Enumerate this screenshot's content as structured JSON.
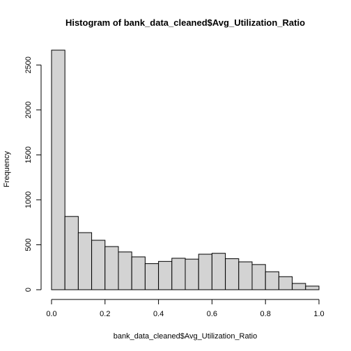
{
  "chart_data": {
    "type": "bar",
    "title": "Histogram of bank_data_cleaned$Avg_Utilization_Ratio",
    "xlabel": "bank_data_cleaned$Avg_Utilization_Ratio",
    "ylabel": "Frequency",
    "bin_edges": [
      0.0,
      0.05,
      0.1,
      0.15,
      0.2,
      0.25,
      0.3,
      0.35,
      0.4,
      0.45,
      0.5,
      0.55,
      0.6,
      0.65,
      0.7,
      0.75,
      0.8,
      0.85,
      0.9,
      0.95,
      1.0
    ],
    "values": [
      2665,
      815,
      635,
      550,
      480,
      420,
      365,
      290,
      315,
      350,
      340,
      395,
      405,
      345,
      310,
      280,
      200,
      145,
      70,
      40
    ],
    "xlim": [
      0,
      1
    ],
    "ylim": [
      0,
      2665
    ],
    "x_ticks": [
      "0.0",
      "0.2",
      "0.4",
      "0.6",
      "0.8",
      "1.0"
    ],
    "x_tick_values": [
      0,
      0.2,
      0.4,
      0.6,
      0.8,
      1.0
    ],
    "y_ticks": [
      "0",
      "500",
      "1000",
      "1500",
      "2000",
      "2500"
    ],
    "y_tick_values": [
      0,
      500,
      1000,
      1500,
      2000,
      2500
    ],
    "grid": false,
    "bar_fill": "#d3d3d3",
    "bar_stroke": "#000000"
  }
}
